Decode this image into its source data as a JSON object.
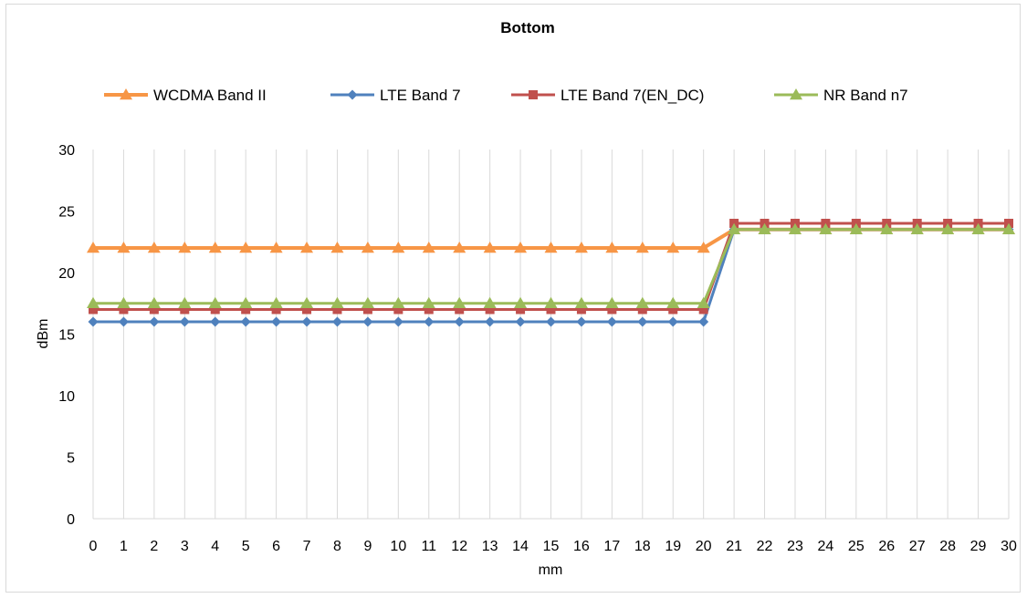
{
  "chart_data": {
    "type": "line",
    "title": "Bottom",
    "xlabel": "mm",
    "ylabel": "dBm",
    "x": [
      0,
      1,
      2,
      3,
      4,
      5,
      6,
      7,
      8,
      9,
      10,
      11,
      12,
      13,
      14,
      15,
      16,
      17,
      18,
      19,
      20,
      21,
      22,
      23,
      24,
      25,
      26,
      27,
      28,
      29,
      30
    ],
    "ylim": [
      0,
      30
    ],
    "yticks": [
      0,
      5,
      10,
      15,
      20,
      25,
      30
    ],
    "grid": "vertical",
    "legend_position": "top",
    "series": [
      {
        "name": "WCDMA Band II",
        "color": "#f79646",
        "marker": "triangle",
        "values": [
          22,
          22,
          22,
          22,
          22,
          22,
          22,
          22,
          22,
          22,
          22,
          22,
          22,
          22,
          22,
          22,
          22,
          22,
          22,
          22,
          22,
          23.5,
          23.5,
          23.5,
          23.5,
          23.5,
          23.5,
          23.5,
          23.5,
          23.5,
          23.5
        ]
      },
      {
        "name": "LTE Band 7",
        "color": "#4f81bd",
        "marker": "diamond",
        "values": [
          16,
          16,
          16,
          16,
          16,
          16,
          16,
          16,
          16,
          16,
          16,
          16,
          16,
          16,
          16,
          16,
          16,
          16,
          16,
          16,
          16,
          23.5,
          23.5,
          23.5,
          23.5,
          23.5,
          23.5,
          23.5,
          23.5,
          23.5,
          23.5
        ]
      },
      {
        "name": "LTE Band 7(EN_DC)",
        "color": "#c0504d",
        "marker": "square",
        "values": [
          17,
          17,
          17,
          17,
          17,
          17,
          17,
          17,
          17,
          17,
          17,
          17,
          17,
          17,
          17,
          17,
          17,
          17,
          17,
          17,
          17,
          24,
          24,
          24,
          24,
          24,
          24,
          24,
          24,
          24,
          24
        ]
      },
      {
        "name": "NR Band n7",
        "color": "#9bbb59",
        "marker": "triangle",
        "values": [
          17.5,
          17.5,
          17.5,
          17.5,
          17.5,
          17.5,
          17.5,
          17.5,
          17.5,
          17.5,
          17.5,
          17.5,
          17.5,
          17.5,
          17.5,
          17.5,
          17.5,
          17.5,
          17.5,
          17.5,
          17.5,
          23.5,
          23.5,
          23.5,
          23.5,
          23.5,
          23.5,
          23.5,
          23.5,
          23.5,
          23.5
        ]
      }
    ]
  }
}
